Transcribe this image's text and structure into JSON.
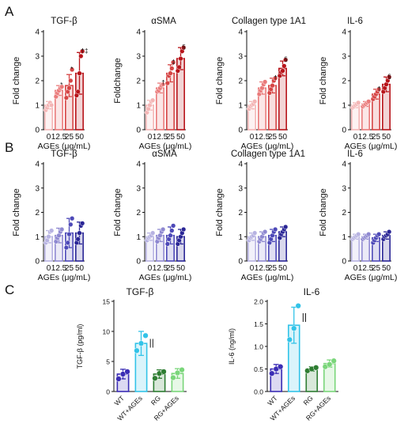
{
  "panel_labels": [
    "A",
    "B",
    "C"
  ],
  "chart_data": [
    {
      "type": "bar",
      "panel": "A",
      "title": "TGF-β",
      "ylabel": "Fold change",
      "xlabel": "AGEs (μg/mL)",
      "categories": [
        "0",
        "12.5",
        "25",
        "50"
      ],
      "ylim": [
        0,
        4
      ],
      "yticks": [
        0,
        1,
        2,
        3,
        4
      ],
      "values": [
        1.0,
        1.6,
        1.8,
        2.3
      ],
      "errors": [
        0.15,
        0.2,
        0.45,
        0.85
      ],
      "points": [
        [
          0.8,
          0.9,
          1.0,
          1.1,
          1.0
        ],
        [
          1.35,
          1.5,
          1.6,
          1.7,
          1.75
        ],
        [
          1.3,
          1.55,
          1.7,
          2.0,
          2.45
        ],
        [
          1.4,
          1.55,
          2.3,
          3.0,
          3.2
        ]
      ],
      "annotations": [
        "",
        "*",
        "*",
        "†‡"
      ],
      "bar_colors": [
        "#f4b6b6",
        "#ea7b7b",
        "#d64545",
        "#b8141a"
      ]
    },
    {
      "type": "bar",
      "panel": "A",
      "title": "αSMA",
      "ylabel": "Foldchange",
      "xlabel": "AGEs (μg/mL)",
      "categories": [
        "0",
        "12.5",
        "25",
        "50"
      ],
      "ylim": [
        0,
        4
      ],
      "yticks": [
        0,
        1,
        2,
        3,
        4
      ],
      "values": [
        1.0,
        1.7,
        2.3,
        2.9
      ],
      "errors": [
        0.2,
        0.2,
        0.35,
        0.45
      ],
      "points": [
        [
          0.7,
          0.85,
          1.0,
          1.15,
          1.2
        ],
        [
          1.55,
          1.6,
          1.7,
          1.8,
          1.85
        ],
        [
          1.9,
          2.2,
          2.3,
          2.5,
          2.75
        ],
        [
          2.4,
          2.55,
          2.9,
          3.2,
          3.35
        ]
      ],
      "annotations": [
        "",
        "†",
        "‡",
        "§"
      ],
      "bar_colors": [
        "#f4b6b6",
        "#ea7b7b",
        "#d64545",
        "#b8141a"
      ]
    },
    {
      "type": "bar",
      "panel": "A",
      "title": "Collagen type 1A1",
      "ylabel": "Fold change",
      "xlabel": "AGEs (μg/mL)",
      "categories": [
        "0",
        "12.5",
        "25",
        "50"
      ],
      "ylim": [
        0,
        4
      ],
      "yticks": [
        0,
        1,
        2,
        3,
        4
      ],
      "values": [
        1.0,
        1.7,
        1.8,
        2.5
      ],
      "errors": [
        0.15,
        0.25,
        0.3,
        0.3
      ],
      "points": [
        [
          0.85,
          0.95,
          1.0,
          1.05,
          1.15
        ],
        [
          1.45,
          1.6,
          1.7,
          1.85,
          1.95
        ],
        [
          1.5,
          1.65,
          1.8,
          2.0,
          2.1
        ],
        [
          2.2,
          2.35,
          2.4,
          2.6,
          2.85
        ]
      ],
      "annotations": [
        "",
        "",
        "†",
        "§"
      ],
      "bar_colors": [
        "#f4b6b6",
        "#ea7b7b",
        "#d64545",
        "#b8141a"
      ]
    },
    {
      "type": "bar",
      "panel": "A",
      "title": "IL-6",
      "ylabel": "Fold change",
      "xlabel": "AGEs (μg/mL)",
      "categories": [
        "0",
        "12.5",
        "25",
        "50"
      ],
      "ylim": [
        0,
        4
      ],
      "yticks": [
        0,
        1,
        2,
        3,
        4
      ],
      "values": [
        1.0,
        1.05,
        1.45,
        1.85
      ],
      "errors": [
        0.1,
        0.1,
        0.2,
        0.3
      ],
      "points": [
        [
          0.9,
          0.95,
          1.0,
          1.05,
          1.1
        ],
        [
          0.95,
          1.0,
          1.05,
          1.1,
          1.15
        ],
        [
          1.25,
          1.35,
          1.45,
          1.55,
          1.65
        ],
        [
          1.55,
          1.7,
          1.85,
          2.0,
          2.15
        ]
      ],
      "annotations": [
        "",
        "",
        "†",
        "§"
      ],
      "bar_colors": [
        "#f4b6b6",
        "#ea7b7b",
        "#d64545",
        "#b8141a"
      ]
    },
    {
      "type": "bar",
      "panel": "B",
      "title": "TGF-β",
      "ylabel": "Fold change",
      "xlabel": "AGEs (μg/mL)",
      "categories": [
        "0",
        "12.5",
        "25",
        "50"
      ],
      "ylim": [
        0,
        4
      ],
      "yticks": [
        0,
        1,
        2,
        3,
        4
      ],
      "values": [
        1.0,
        1.05,
        1.15,
        1.15
      ],
      "errors": [
        0.25,
        0.3,
        0.6,
        0.45
      ],
      "points": [
        [
          0.75,
          0.85,
          1.0,
          1.2,
          1.25
        ],
        [
          0.8,
          0.95,
          1.05,
          1.2,
          1.3
        ],
        [
          0.55,
          0.75,
          1.1,
          1.5,
          1.75
        ],
        [
          0.75,
          0.9,
          1.15,
          1.45,
          1.55
        ]
      ],
      "annotations": [
        "",
        "",
        "",
        ""
      ],
      "bar_colors": [
        "#b7b3e2",
        "#8f89d1",
        "#4d49b8",
        "#2a2696"
      ]
    },
    {
      "type": "bar",
      "panel": "B",
      "title": "αSMA",
      "ylabel": "Fold change",
      "xlabel": "AGEs (μg/mL)",
      "categories": [
        "0",
        "12.5",
        "25",
        "50"
      ],
      "ylim": [
        0,
        4
      ],
      "yticks": [
        0,
        1,
        2,
        3,
        4
      ],
      "values": [
        1.0,
        1.05,
        1.05,
        1.0
      ],
      "errors": [
        0.15,
        0.25,
        0.35,
        0.3
      ],
      "points": [
        [
          0.85,
          0.95,
          1.0,
          1.05,
          1.15
        ],
        [
          0.8,
          0.95,
          1.05,
          1.2,
          1.3
        ],
        [
          0.7,
          0.9,
          1.05,
          1.25,
          1.45
        ],
        [
          0.7,
          0.85,
          1.0,
          1.15,
          1.3
        ]
      ],
      "annotations": [
        "",
        "",
        "",
        ""
      ],
      "bar_colors": [
        "#b7b3e2",
        "#8f89d1",
        "#4d49b8",
        "#2a2696"
      ]
    },
    {
      "type": "bar",
      "panel": "B",
      "title": "Collagen type 1A1",
      "ylabel": "Fold change",
      "xlabel": "AGEs (μg/mL)",
      "categories": [
        "0",
        "12.5",
        "25",
        "50"
      ],
      "ylim": [
        0,
        4
      ],
      "yticks": [
        0,
        1,
        2,
        3,
        4
      ],
      "values": [
        1.0,
        1.0,
        1.05,
        1.2
      ],
      "errors": [
        0.15,
        0.2,
        0.25,
        0.2
      ],
      "points": [
        [
          0.85,
          0.95,
          1.0,
          1.05,
          1.15
        ],
        [
          0.8,
          0.9,
          1.0,
          1.15,
          1.2
        ],
        [
          0.75,
          0.9,
          1.05,
          1.2,
          1.3
        ],
        [
          0.95,
          1.1,
          1.2,
          1.3,
          1.4
        ]
      ],
      "annotations": [
        "",
        "",
        "",
        ""
      ],
      "bar_colors": [
        "#b7b3e2",
        "#8f89d1",
        "#4d49b8",
        "#2a2696"
      ]
    },
    {
      "type": "bar",
      "panel": "B",
      "title": "IL-6",
      "ylabel": "Fold change",
      "xlabel": "AGEs (μg/mL)",
      "categories": [
        "0",
        "12.5",
        "25",
        "50"
      ],
      "ylim": [
        0,
        4
      ],
      "yticks": [
        0,
        1,
        2,
        3,
        4
      ],
      "values": [
        1.0,
        1.0,
        0.95,
        1.05
      ],
      "errors": [
        0.1,
        0.1,
        0.15,
        0.15
      ],
      "points": [
        [
          0.9,
          0.95,
          1.0,
          1.05,
          1.1
        ],
        [
          0.9,
          0.95,
          1.0,
          1.05,
          1.1
        ],
        [
          0.75,
          0.85,
          0.95,
          1.05,
          1.1
        ],
        [
          0.9,
          1.0,
          1.05,
          1.1,
          1.2
        ]
      ],
      "annotations": [
        "",
        "",
        "",
        ""
      ],
      "bar_colors": [
        "#b7b3e2",
        "#8f89d1",
        "#4d49b8",
        "#2a2696"
      ]
    },
    {
      "type": "bar",
      "panel": "C",
      "title": "TGF-β",
      "ylabel": "TGF-β (pg/ml)",
      "xlabel": "",
      "categories": [
        "WT",
        "WT+AGEs",
        "RG",
        "RG+AGEs"
      ],
      "ylim": [
        0,
        15
      ],
      "yticks": [
        0,
        5,
        10,
        15
      ],
      "values": [
        2.9,
        8.0,
        2.9,
        3.0
      ],
      "errors": [
        0.8,
        2.0,
        0.7,
        0.8
      ],
      "points": [
        [
          2.1,
          2.9,
          3.3
        ],
        [
          6.8,
          8.0,
          9.3
        ],
        [
          2.2,
          3.0,
          3.3
        ],
        [
          2.3,
          3.1,
          3.6
        ]
      ],
      "annotations": [
        "",
        "||",
        "",
        ""
      ],
      "bar_colors": [
        "#3b2db5",
        "#32c3e8",
        "#2e7d32",
        "#7ad67a"
      ]
    },
    {
      "type": "bar",
      "panel": "C",
      "title": "IL-6",
      "ylabel": "IL-6 (ng/ml)",
      "xlabel": "",
      "categories": [
        "WT",
        "WT+AGEs",
        "RG",
        "RG+AGEs"
      ],
      "ylim": [
        0,
        2.0
      ],
      "yticks": [
        0.0,
        0.5,
        1.0,
        1.5,
        2.0
      ],
      "values": [
        0.5,
        1.47,
        0.5,
        0.62
      ],
      "errors": [
        0.1,
        0.4,
        0.05,
        0.08
      ],
      "points": [
        [
          0.4,
          0.5,
          0.55
        ],
        [
          1.15,
          1.4,
          1.9
        ],
        [
          0.46,
          0.5,
          0.53
        ],
        [
          0.55,
          0.6,
          0.68
        ]
      ],
      "annotations": [
        "",
        "||",
        "",
        ""
      ],
      "bar_colors": [
        "#3b2db5",
        "#32c3e8",
        "#2e7d32",
        "#7ad67a"
      ]
    }
  ]
}
